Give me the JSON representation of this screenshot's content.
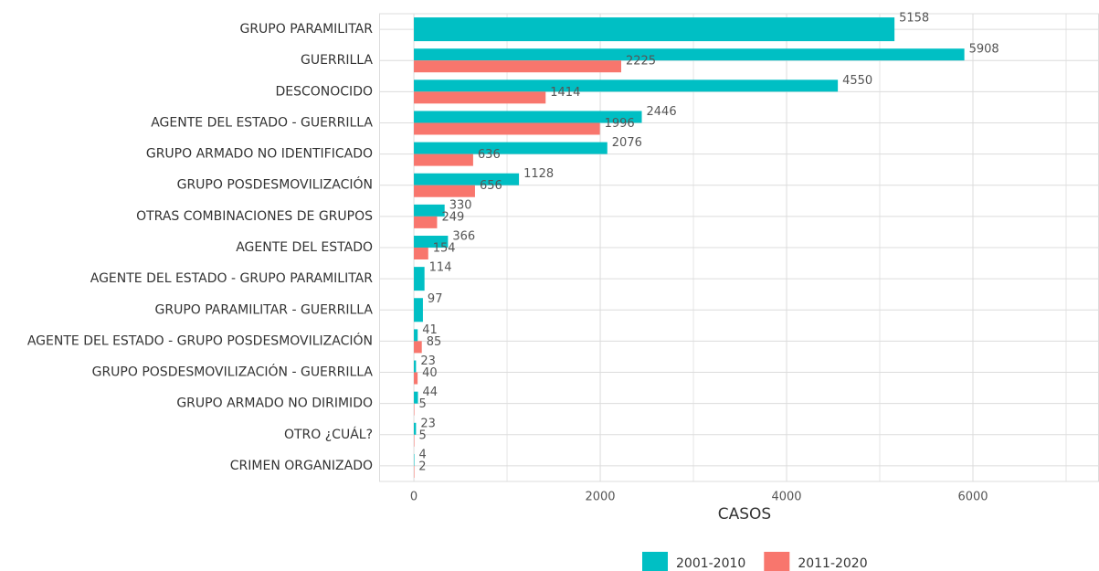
{
  "chart_data": {
    "type": "bar",
    "orientation": "horizontal",
    "categories": [
      "GRUPO PARAMILITAR",
      "GUERRILLA",
      "DESCONOCIDO",
      "AGENTE DEL ESTADO - GUERRILLA",
      "GRUPO ARMADO NO IDENTIFICADO",
      "GRUPO POSDESMOVILIZACIÓN",
      "OTRAS COMBINACIONES DE GRUPOS",
      "AGENTE DEL ESTADO",
      "AGENTE DEL ESTADO - GRUPO PARAMILITAR",
      "GRUPO PARAMILITAR - GUERRILLA",
      "AGENTE DEL ESTADO - GRUPO POSDESMOVILIZACIÓN",
      "GRUPO POSDESMOVILIZACIÓN - GUERRILLA",
      "GRUPO ARMADO NO DIRIMIDO",
      "OTRO ¿CUÁL?",
      "CRIMEN ORGANIZADO"
    ],
    "series": [
      {
        "name": "2001-2010",
        "color": "#00BFC4",
        "values": [
          5158,
          5908,
          4550,
          2446,
          2076,
          1128,
          330,
          366,
          114,
          97,
          41,
          23,
          44,
          23,
          4
        ]
      },
      {
        "name": "2011-2020",
        "color": "#F8766D",
        "values": [
          null,
          2225,
          1414,
          1996,
          636,
          656,
          249,
          154,
          null,
          null,
          85,
          40,
          5,
          5,
          2
        ]
      }
    ],
    "x_label": "CASOS",
    "xlim": [
      -373,
      7353
    ],
    "xticks": [
      0,
      2000,
      4000,
      6000
    ],
    "grid": true,
    "legend": "bottom"
  }
}
